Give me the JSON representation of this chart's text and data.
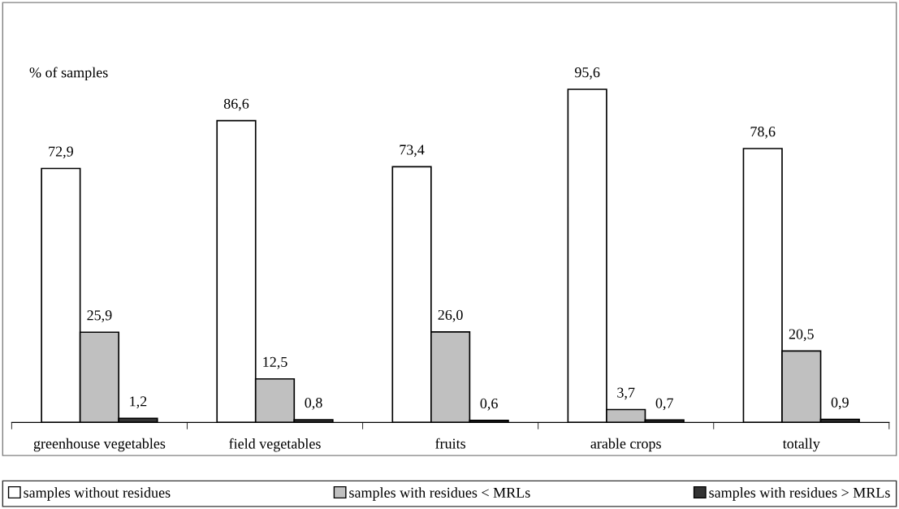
{
  "chart_data": {
    "type": "bar",
    "ylabel": "% of samples",
    "categories": [
      "greenhouse vegetables",
      "field vegetables",
      "fruits",
      "arable crops",
      "totally"
    ],
    "series": [
      {
        "name": "samples without residues",
        "color": "#ffffff",
        "values": [
          72.9,
          86.6,
          73.4,
          95.6,
          78.6
        ],
        "value_labels": [
          "72,9",
          "86,6",
          "73,4",
          "95,6",
          "78,6"
        ]
      },
      {
        "name": "samples with residues < MRLs",
        "color": "#c0c0c0",
        "values": [
          25.9,
          12.5,
          26.0,
          3.7,
          20.5
        ],
        "value_labels": [
          "25,9",
          "12,5",
          "26,0",
          "3,7",
          "20,5"
        ]
      },
      {
        "name": "samples with residues > MRLs",
        "color": "#333333",
        "values": [
          1.2,
          0.8,
          0.6,
          0.7,
          0.9
        ],
        "value_labels": [
          "1,2",
          "0,8",
          "0,6",
          "0,7",
          "0,9"
        ]
      }
    ],
    "grid": false,
    "legend": "bottom",
    "tick_labels": "x"
  }
}
